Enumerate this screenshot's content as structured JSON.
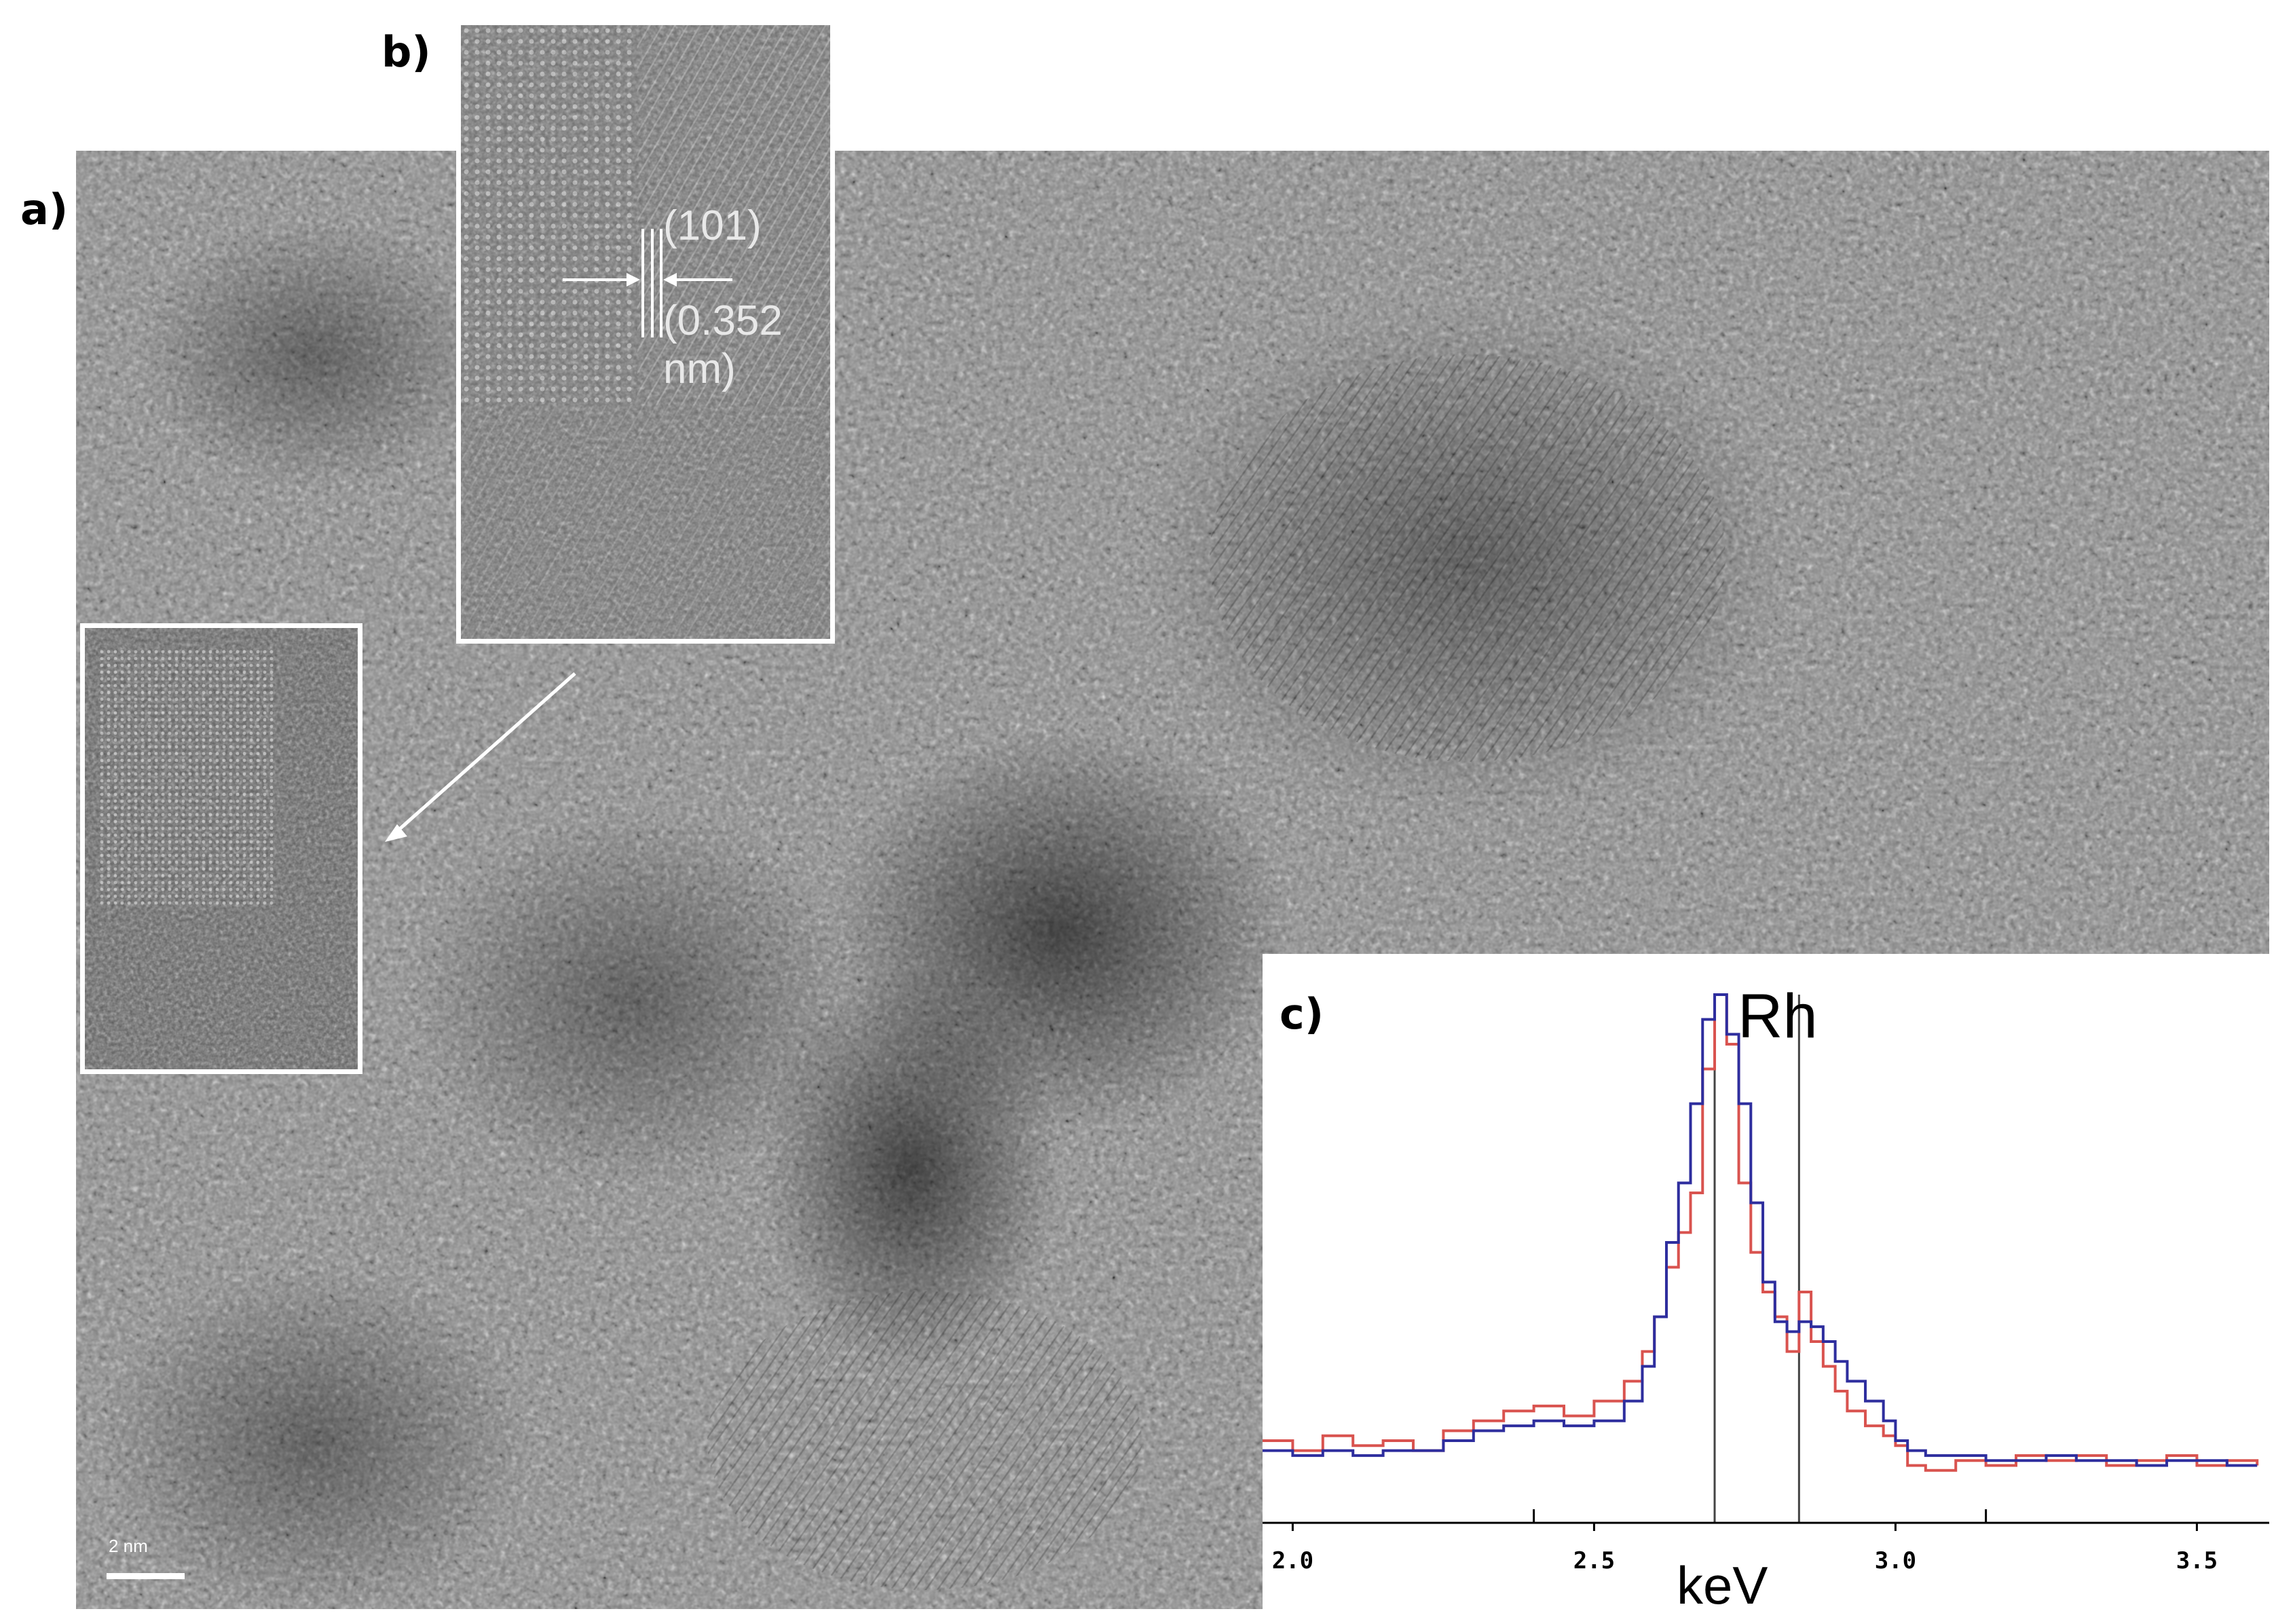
{
  "panels": {
    "a_label": "a)",
    "b_label": "b)",
    "c_label": "c)"
  },
  "inset_b": {
    "plane": "(101)",
    "spacing": "(0.352 nm)"
  },
  "scale_bar": {
    "label": "2 nm"
  },
  "chart_data": {
    "type": "line",
    "title": "",
    "annotation": "Rh",
    "xlabel": "keV",
    "ylabel": "",
    "xlim": [
      1.95,
      3.62
    ],
    "ylim": [
      0,
      1.0
    ],
    "x_ticks": [
      "2.0",
      "2.5",
      "3.0",
      "3.5"
    ],
    "grid": false,
    "marker_lines_keV": [
      2.7,
      2.84
    ],
    "colors": {
      "red": "#d9534f",
      "blue": "#2e2e9e"
    },
    "series": [
      {
        "color": "red",
        "x": [
          1.95,
          2.0,
          2.05,
          2.1,
          2.15,
          2.2,
          2.25,
          2.3,
          2.35,
          2.4,
          2.45,
          2.5,
          2.55,
          2.58,
          2.6,
          2.62,
          2.64,
          2.66,
          2.68,
          2.7,
          2.72,
          2.74,
          2.76,
          2.78,
          2.8,
          2.82,
          2.84,
          2.86,
          2.88,
          2.9,
          2.92,
          2.95,
          2.98,
          3.0,
          3.02,
          3.05,
          3.1,
          3.15,
          3.2,
          3.25,
          3.3,
          3.35,
          3.4,
          3.45,
          3.5,
          3.55,
          3.6
        ],
        "y": [
          0.1,
          0.08,
          0.11,
          0.09,
          0.1,
          0.08,
          0.12,
          0.14,
          0.16,
          0.17,
          0.15,
          0.18,
          0.22,
          0.28,
          0.35,
          0.45,
          0.52,
          0.6,
          0.85,
          1.0,
          0.9,
          0.62,
          0.48,
          0.4,
          0.35,
          0.28,
          0.4,
          0.3,
          0.25,
          0.2,
          0.16,
          0.13,
          0.11,
          0.09,
          0.05,
          0.04,
          0.06,
          0.05,
          0.07,
          0.06,
          0.07,
          0.05,
          0.06,
          0.07,
          0.05,
          0.06,
          0.05
        ]
      },
      {
        "color": "blue",
        "x": [
          1.95,
          2.0,
          2.05,
          2.1,
          2.15,
          2.2,
          2.25,
          2.3,
          2.35,
          2.4,
          2.45,
          2.5,
          2.55,
          2.58,
          2.6,
          2.62,
          2.64,
          2.66,
          2.68,
          2.7,
          2.72,
          2.74,
          2.76,
          2.78,
          2.8,
          2.82,
          2.84,
          2.86,
          2.88,
          2.9,
          2.92,
          2.95,
          2.98,
          3.0,
          3.02,
          3.05,
          3.1,
          3.15,
          3.2,
          3.25,
          3.3,
          3.35,
          3.4,
          3.45,
          3.5,
          3.55,
          3.6
        ],
        "y": [
          0.08,
          0.07,
          0.08,
          0.07,
          0.08,
          0.08,
          0.1,
          0.12,
          0.13,
          0.14,
          0.13,
          0.14,
          0.18,
          0.25,
          0.35,
          0.5,
          0.62,
          0.78,
          0.95,
          1.0,
          0.92,
          0.78,
          0.58,
          0.42,
          0.34,
          0.32,
          0.34,
          0.33,
          0.3,
          0.26,
          0.22,
          0.18,
          0.14,
          0.1,
          0.08,
          0.07,
          0.07,
          0.06,
          0.06,
          0.07,
          0.06,
          0.06,
          0.05,
          0.06,
          0.06,
          0.05,
          0.05
        ]
      }
    ]
  }
}
